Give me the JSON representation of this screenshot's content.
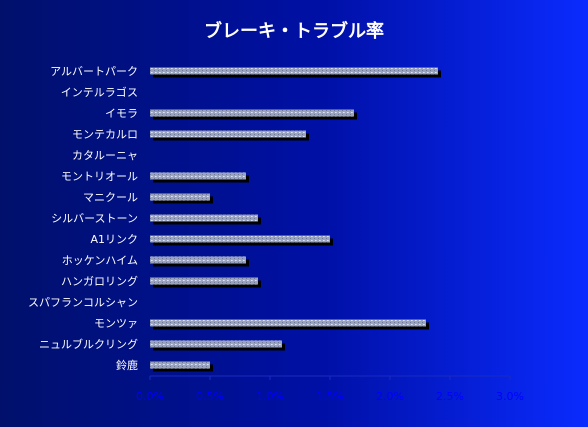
{
  "chart_data": {
    "type": "bar",
    "orientation": "horizontal",
    "title": "ブレーキ・トラブル率",
    "categories": [
      "アルバートパーク",
      "インテルラゴス",
      "イモラ",
      "モンテカルロ",
      "カタルーニャ",
      "モントリオール",
      "マニクール",
      "シルバーストーン",
      "A1リンク",
      "ホッケンハイム",
      "ハンガロリング",
      "スパフランコルシャン",
      "モンツァ",
      "ニュルブルクリング",
      "鈴鹿"
    ],
    "values": [
      2.4,
      0.0,
      1.7,
      1.3,
      0.0,
      0.8,
      0.5,
      0.9,
      1.5,
      0.8,
      0.9,
      0.0,
      2.3,
      1.1,
      0.5
    ],
    "xlim": [
      0,
      3
    ],
    "xticks": [
      "0.0%",
      "0.5%",
      "1.0%",
      "1.5%",
      "2.0%",
      "2.5%",
      "3.0%"
    ],
    "xlabel": "",
    "ylabel": "",
    "legend": "none",
    "grid": false
  },
  "colors": {
    "bar_fill": "#9aa4c0",
    "bar_shadow": "#000000",
    "text": "#ffffff",
    "tick_text": "#0000ff",
    "axis": "#1a2bc0"
  }
}
